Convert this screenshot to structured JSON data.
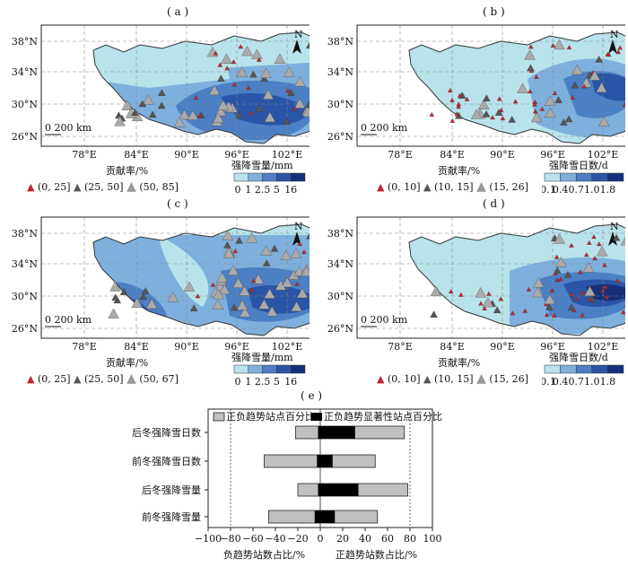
{
  "panels": [
    {
      "label": "( a )",
      "contrib_title": "贡献率/%",
      "contrib_items": [
        "(0, 25]",
        "(25, 50]",
        "(50, 85]"
      ],
      "scale_title": "强降雪量/mm",
      "scale_ticks": [
        "0",
        "1",
        "2.5",
        "5",
        "16"
      ]
    },
    {
      "label": "( b )",
      "contrib_title": "贡献率/%",
      "contrib_items": [
        "(0, 10]",
        "(10, 15]",
        "(15, 26]"
      ],
      "scale_title": "强降雪日数/d",
      "scale_ticks": [
        "0.1",
        "0.4",
        "0.7",
        "1.0",
        "1.8"
      ]
    },
    {
      "label": "( c )",
      "contrib_title": "贡献率/%",
      "contrib_items": [
        "(0, 25]",
        "(25, 50]",
        "(50, 67]"
      ],
      "scale_title": "强降雪量/mm",
      "scale_ticks": [
        "0",
        "1",
        "2.5",
        "5",
        "16"
      ]
    },
    {
      "label": "( d )",
      "contrib_title": "贡献率/%",
      "contrib_items": [
        "(0, 10]",
        "(10, 15]",
        "(15, 26]"
      ],
      "scale_title": "强降雪日数/d",
      "scale_ticks": [
        "0.1",
        "0.4",
        "0.7",
        "1.0",
        "1.8"
      ]
    }
  ],
  "map_axes": {
    "lat_ticks": [
      "38°N",
      "34°N",
      "30°N",
      "26°N"
    ],
    "lon_ticks": [
      "78°E",
      "84°E",
      "90°E",
      "96°E",
      "102°E"
    ],
    "scalebar": "0  200 km",
    "north": "N"
  },
  "colors": {
    "c1": "#b8e3ea",
    "c2": "#7fb0dd",
    "c3": "#4c7fc4",
    "c4": "#2a55a6",
    "c5": "#172f7a"
  },
  "chart_e": {
    "label": "( e )",
    "legend": [
      "正负趋势站点百分比",
      "正负趋势显著性站点百分比"
    ],
    "xlabel_neg": "负趋势站数占比/%",
    "xlabel_pos": "正趋势站数占比/%",
    "x_ticks": [
      "−100",
      "−80",
      "−60",
      "−40",
      "−20",
      "0",
      "20",
      "40",
      "60",
      "80",
      "100"
    ]
  },
  "chart_data": {
    "type": "bar",
    "categories": [
      "后冬强降雪日数",
      "前冬强降雪日数",
      "后冬强降雪量",
      "前冬强降雪量"
    ],
    "series": [
      {
        "name": "正负趋势站点百分比",
        "neg": [
          -22,
          -50,
          -20,
          -46
        ],
        "pos": [
          75,
          49,
          78,
          51
        ]
      },
      {
        "name": "正负趋势显著性站点百分比",
        "neg": [
          -2,
          -3,
          -2,
          -5
        ],
        "pos": [
          31,
          11,
          34,
          13
        ]
      }
    ],
    "xlim": [
      -100,
      100
    ]
  }
}
